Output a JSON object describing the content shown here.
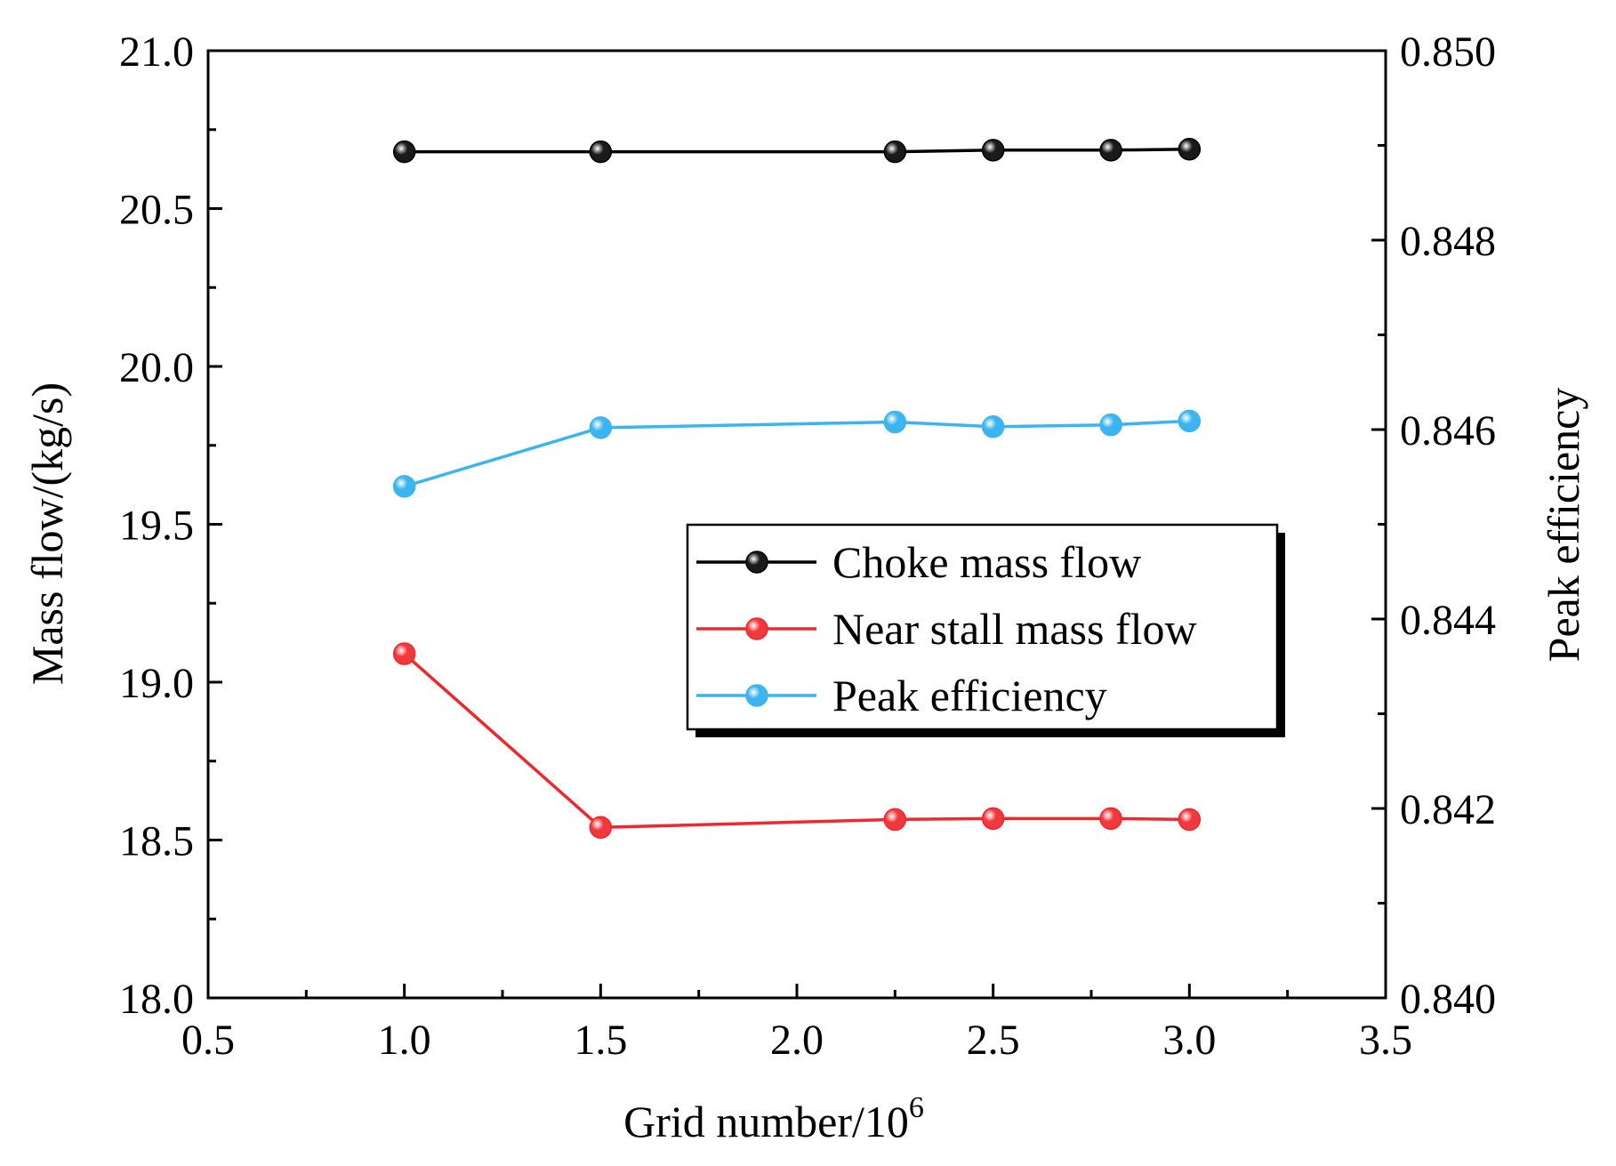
{
  "chart_data": {
    "type": "line",
    "title": "",
    "xlabel": "Grid number/10",
    "xlabel_sup": "6",
    "ylabel": "Mass flow/(kg/s)",
    "y2label": "Peak efficiency",
    "xlim": [
      0.5,
      3.5
    ],
    "ylim": [
      18.0,
      21.0
    ],
    "y2lim": [
      0.84,
      0.85
    ],
    "x_ticks": [
      "0.5",
      "1.0",
      "1.5",
      "2.0",
      "2.5",
      "3.0",
      "3.5"
    ],
    "y_ticks": [
      "18.0",
      "18.5",
      "19.0",
      "19.5",
      "20.0",
      "20.5",
      "21.0"
    ],
    "y2_ticks": [
      "0.840",
      "0.842",
      "0.844",
      "0.846",
      "0.848",
      "0.850"
    ],
    "grid": false,
    "legend_position": "center-right",
    "x": [
      1.0,
      1.5,
      2.25,
      2.5,
      2.8,
      3.0
    ],
    "series": [
      {
        "name": "Choke mass flow",
        "axis": "left",
        "color": "#000000",
        "marker_color": "#1a1a1a",
        "values": [
          20.68,
          20.68,
          20.68,
          20.685,
          20.685,
          20.688
        ]
      },
      {
        "name": "Near stall mass flow",
        "axis": "left",
        "color": "#f0282d",
        "marker_color": "#f0383d",
        "values": [
          19.09,
          18.54,
          18.565,
          18.568,
          18.568,
          18.565
        ]
      },
      {
        "name": "Peak efficiency",
        "axis": "right",
        "color": "#3cb4f0",
        "marker_color": "#3cb4f0",
        "values": [
          0.8454,
          0.84602,
          0.84608,
          0.84603,
          0.84605,
          0.84609
        ]
      }
    ]
  }
}
